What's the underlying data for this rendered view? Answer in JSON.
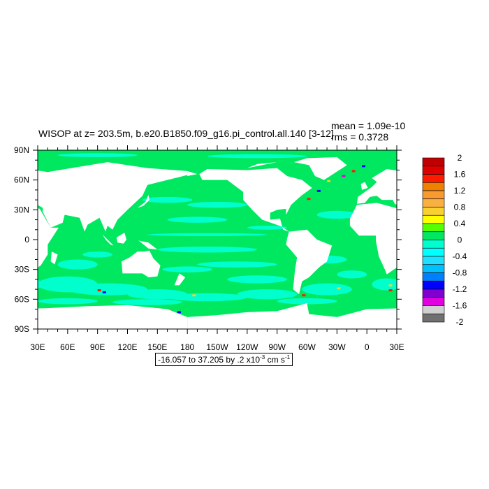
{
  "title": "WISOP at z= 203.5m, b.e20.B1850.f09_g16.pi_control.all.140 [3-12]",
  "stats": {
    "mean": "mean = 1.09e-10",
    "rms": "rms = 0.3728"
  },
  "x_ticks": [
    "30E",
    "60E",
    "90E",
    "120E",
    "150E",
    "180",
    "150W",
    "120W",
    "90W",
    "60W",
    "30W",
    "0",
    "30E"
  ],
  "y_ticks": [
    "90N",
    "60N",
    "30N",
    "0",
    "30S",
    "60S",
    "90S"
  ],
  "colorbar": {
    "labels": [
      "2",
      "1.6",
      "1.2",
      "0.8",
      "0.4",
      "0",
      "-0.4",
      "-0.8",
      "-1.2",
      "-1.6",
      "-2"
    ],
    "colors": [
      "#c00000",
      "#dd0000",
      "#ff1a00",
      "#f08000",
      "#f89a30",
      "#f8b040",
      "#f8d030",
      "#ffff00",
      "#55ff00",
      "#00e860",
      "#00ffcc",
      "#00ffff",
      "#20e0ff",
      "#00c0ff",
      "#0080ff",
      "#0000ff",
      "#8000d0",
      "#e000e0",
      "#d0d0d0",
      "#707070"
    ]
  },
  "footer": {
    "range": "-16.057 to 37.205 by .2 x10",
    "exp": "-3",
    "units": " cm s",
    "units_exp": "-1"
  },
  "map": {
    "land_color": "#ffffff",
    "ocean_dominant_color": "#00e860",
    "ocean_secondary_color": "#00ffcc",
    "lon_range": [
      "30E",
      "30E"
    ],
    "lat_range": [
      "90S",
      "90N"
    ]
  }
}
